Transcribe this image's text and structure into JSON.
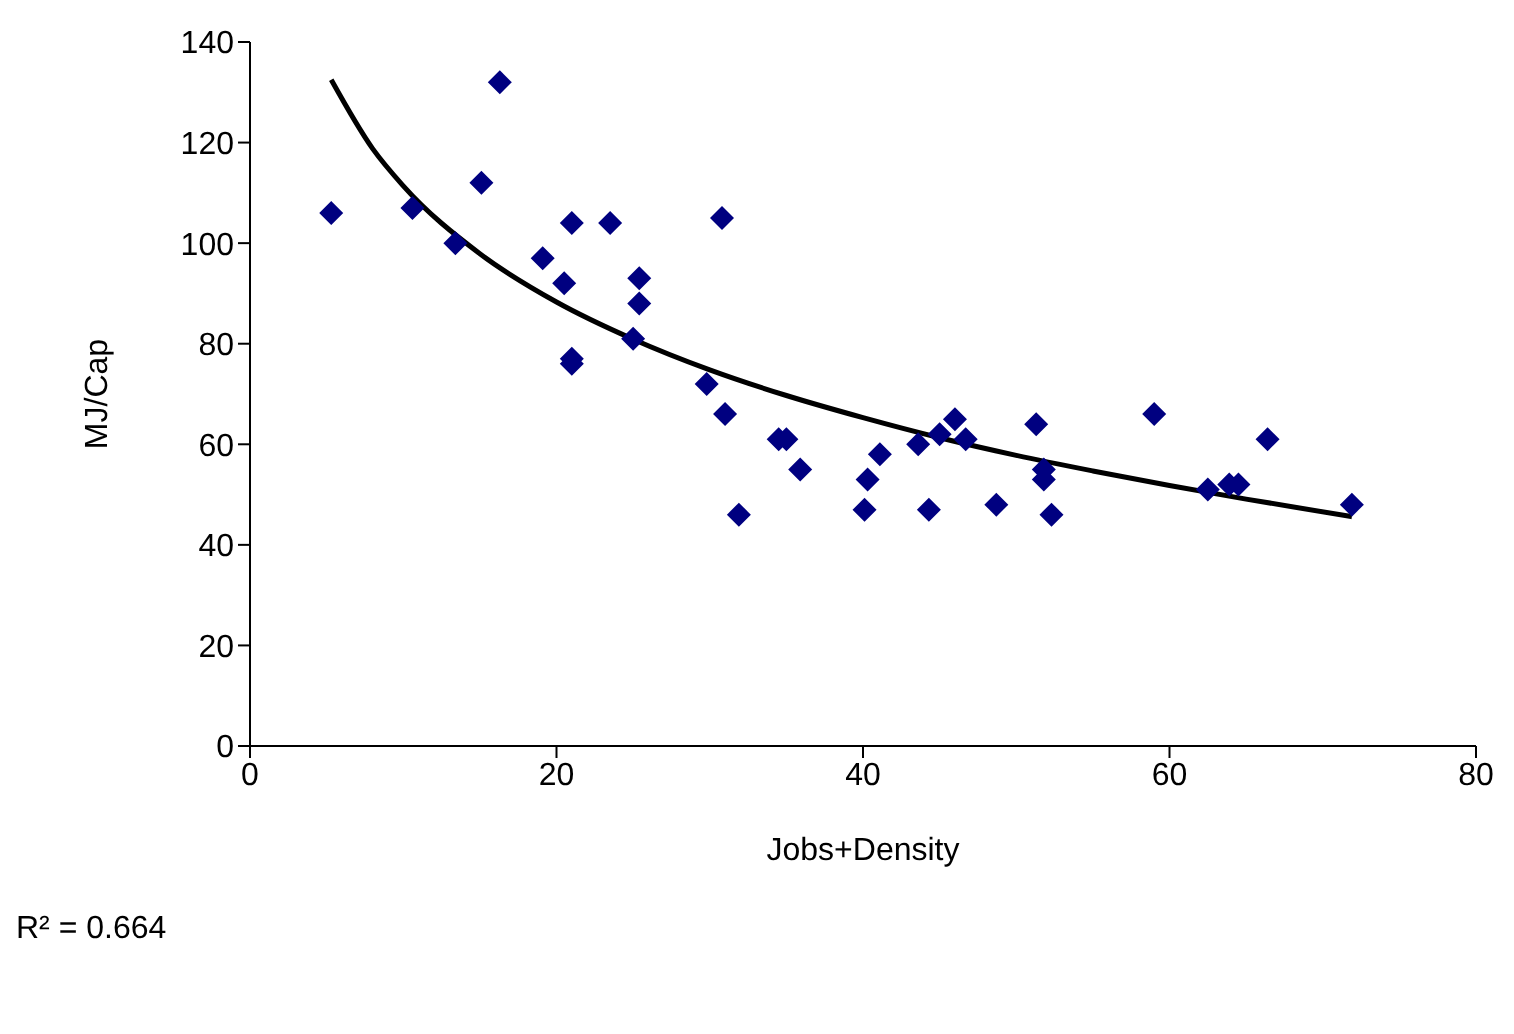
{
  "chart_data": {
    "type": "scatter",
    "xlabel": "Jobs+Density",
    "ylabel": "MJ/Cap",
    "xlim": [
      0,
      80
    ],
    "xticks": [
      0,
      20,
      40,
      60,
      80
    ],
    "ylim": [
      0,
      140
    ],
    "yticks": [
      0,
      20,
      40,
      60,
      80,
      100,
      120,
      140
    ],
    "grid": false,
    "annotations": [
      "R² = 0.664"
    ],
    "series": [
      {
        "marker": "diamond",
        "color": "#000080",
        "x": [
          5.3,
          16.3,
          10.6,
          15.1,
          13.4,
          21.0,
          23.5,
          30.8,
          19.1,
          20.5,
          25.4,
          25.4,
          25.0,
          21.0,
          21.0,
          29.8,
          31.0,
          31.9,
          34.5,
          35.0,
          35.9,
          40.3,
          41.1,
          40.1,
          43.6,
          45.0,
          46.0,
          46.7,
          44.3,
          48.7,
          51.3,
          51.8,
          51.8,
          52.3,
          59.0,
          66.4,
          62.5,
          63.9,
          64.5,
          71.9
        ],
        "values": [
          106,
          132,
          107,
          112,
          100,
          104,
          104,
          105,
          97,
          92,
          93,
          88,
          81,
          77,
          76,
          72,
          66,
          46,
          61,
          61,
          55,
          53,
          58,
          47,
          60,
          62,
          65,
          61,
          47,
          48,
          64,
          55,
          53,
          46,
          66,
          61,
          51,
          52,
          52,
          48
        ]
      },
      {
        "type": "line",
        "marker": "none",
        "color": "#000000",
        "x": [
          5.3,
          8,
          10,
          15,
          20,
          25,
          30,
          35,
          40,
          45,
          50,
          55,
          60,
          65,
          71.9
        ],
        "values": [
          132.5,
          118.8,
          111.4,
          97.9,
          88.3,
          80.9,
          74.8,
          69.7,
          65.3,
          61.3,
          57.8,
          54.7,
          51.8,
          49.1,
          45.6
        ]
      }
    ]
  }
}
